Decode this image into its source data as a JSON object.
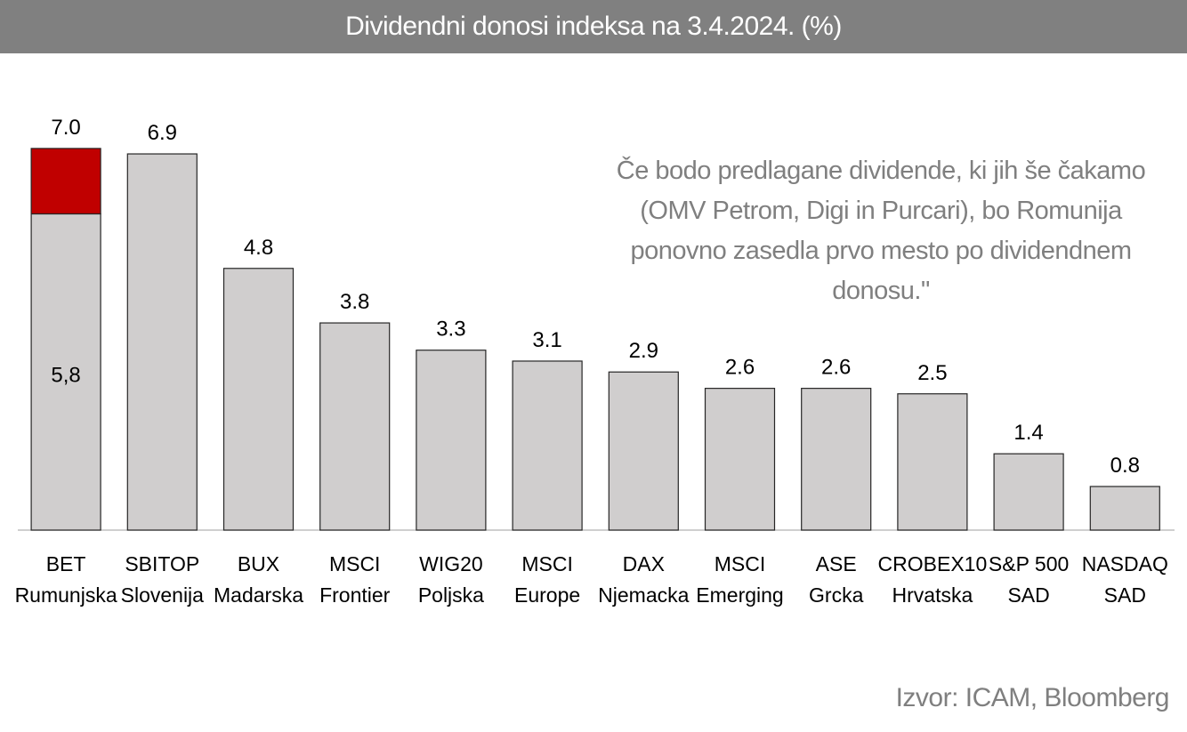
{
  "title": "Dividendni donosi indeksa na 3.4.2024. (%)",
  "note": "Če bodo predlagane dividende, ki jih še čakamo (OMV Petrom, Digi in Purcari), bo Romunija ponovno zasedla prvo mesto po dividendnem donosu.\"",
  "source": "Izvor: ICAM, Bloomberg",
  "colors": {
    "bar": "#d0cece",
    "highlight": "#c00000",
    "title_bg": "#808080",
    "text_muted": "#7f7f7f"
  },
  "chart_data": {
    "type": "bar",
    "title": "Dividendni donosi indeksa na 3.4.2024. (%)",
    "ylim": [
      0,
      7.3
    ],
    "grid": false,
    "categories": [
      [
        "BET",
        "Rumunjska"
      ],
      [
        "SBITOP",
        "Slovenija"
      ],
      [
        "BUX",
        "Madarska"
      ],
      [
        "MSCI",
        "Frontier"
      ],
      [
        "WIG20",
        "Poljska"
      ],
      [
        "MSCI",
        "Europe"
      ],
      [
        "DAX",
        "Njemacka"
      ],
      [
        "MSCI",
        "Emerging"
      ],
      [
        "ASE",
        "Grcka"
      ],
      [
        "CROBEX10",
        "Hrvatska"
      ],
      [
        "S&P 500",
        "SAD"
      ],
      [
        "NASDAQ",
        "SAD"
      ]
    ],
    "values": [
      7.0,
      6.9,
      4.8,
      3.8,
      3.3,
      3.1,
      2.9,
      2.6,
      2.6,
      2.5,
      1.4,
      0.8
    ],
    "value_labels": [
      "7.0",
      "6.9",
      "4.8",
      "3.8",
      "3.3",
      "3.1",
      "2.9",
      "2.6",
      "2.6",
      "2.5",
      "1.4",
      "0.8"
    ],
    "stacked_first": {
      "base": 5.8,
      "base_label": "5,8",
      "top": 7.0
    }
  }
}
